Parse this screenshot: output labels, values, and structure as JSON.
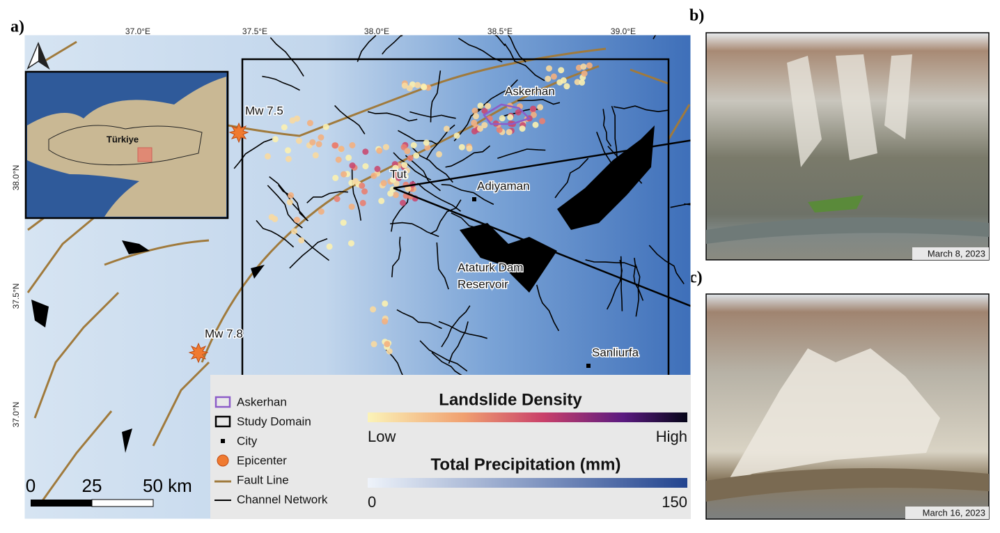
{
  "panels": {
    "a": "a)",
    "b": "b)",
    "c": "c)"
  },
  "map": {
    "lon_labels": [
      "37.0°E",
      "37.5°E",
      "38.0°E",
      "38.5°E",
      "39.0°E"
    ],
    "lat_labels": [
      "38.0°N",
      "37.5°N",
      "37.0°N"
    ],
    "inset_label": "Türkiye",
    "epicenters": [
      "Mw 7.5",
      "Mw 7.8"
    ],
    "places": {
      "askerhan": "Askerhan",
      "tut": "Tut",
      "adiyaman": "Adiyaman",
      "reservoir": [
        "Ataturk Dam",
        "Reservoir"
      ],
      "sanliurfa": "Sanliurfa"
    },
    "scale_bar": [
      "0",
      "25",
      "50 km"
    ]
  },
  "legend": {
    "items": [
      "Askerhan",
      "Study Domain",
      "City",
      "Epicenter",
      "Fault Line",
      "Channel Network"
    ],
    "density": {
      "title": "Landslide Density",
      "low": "Low",
      "high": "High"
    },
    "precipitation": {
      "title": "Total Precipitation (mm)",
      "min": "0",
      "max": "150"
    }
  },
  "photos": [
    {
      "date": "March 8, 2023"
    },
    {
      "date": "March 16, 2023"
    }
  ]
}
